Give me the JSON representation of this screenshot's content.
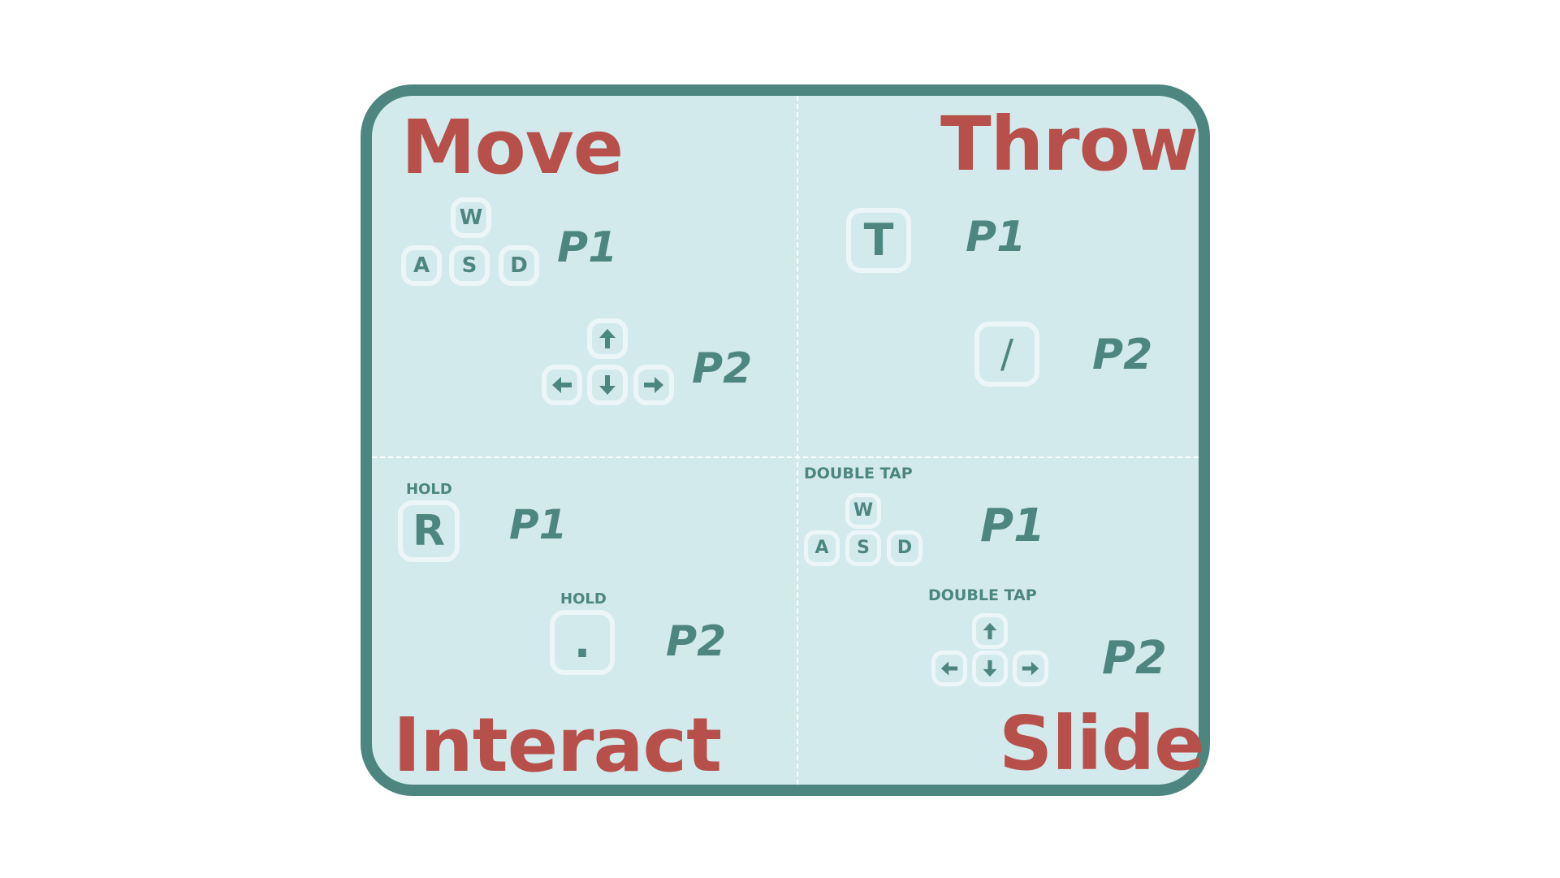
{
  "sections": {
    "move": {
      "title": "Move",
      "p1": {
        "label": "P1",
        "keys": [
          "W",
          "A",
          "S",
          "D"
        ]
      },
      "p2": {
        "label": "P2",
        "keys": [
          "arrow-up-icon",
          "arrow-left-icon",
          "arrow-down-icon",
          "arrow-right-icon"
        ]
      }
    },
    "throw": {
      "title": "Throw",
      "p1": {
        "label": "P1",
        "key": "T"
      },
      "p2": {
        "label": "P2",
        "key": "/"
      }
    },
    "interact": {
      "title": "Interact",
      "p1": {
        "label": "P1",
        "key": "R",
        "modifier": "HOLD"
      },
      "p2": {
        "label": "P2",
        "key": ".",
        "modifier": "HOLD"
      }
    },
    "slide": {
      "title": "Slide",
      "p1": {
        "label": "P1",
        "keys": [
          "W",
          "A",
          "S",
          "D"
        ],
        "modifier": "DOUBLE TAP"
      },
      "p2": {
        "label": "P2",
        "keys": [
          "arrow-up-icon",
          "arrow-left-icon",
          "arrow-down-icon",
          "arrow-right-icon"
        ],
        "modifier": "DOUBLE TAP"
      }
    }
  },
  "colors": {
    "title": "#b7504a",
    "text": "#4d8680",
    "border": "#4d8680",
    "panel_bg": "#d3eaec",
    "key_border": "#edf6f6"
  }
}
